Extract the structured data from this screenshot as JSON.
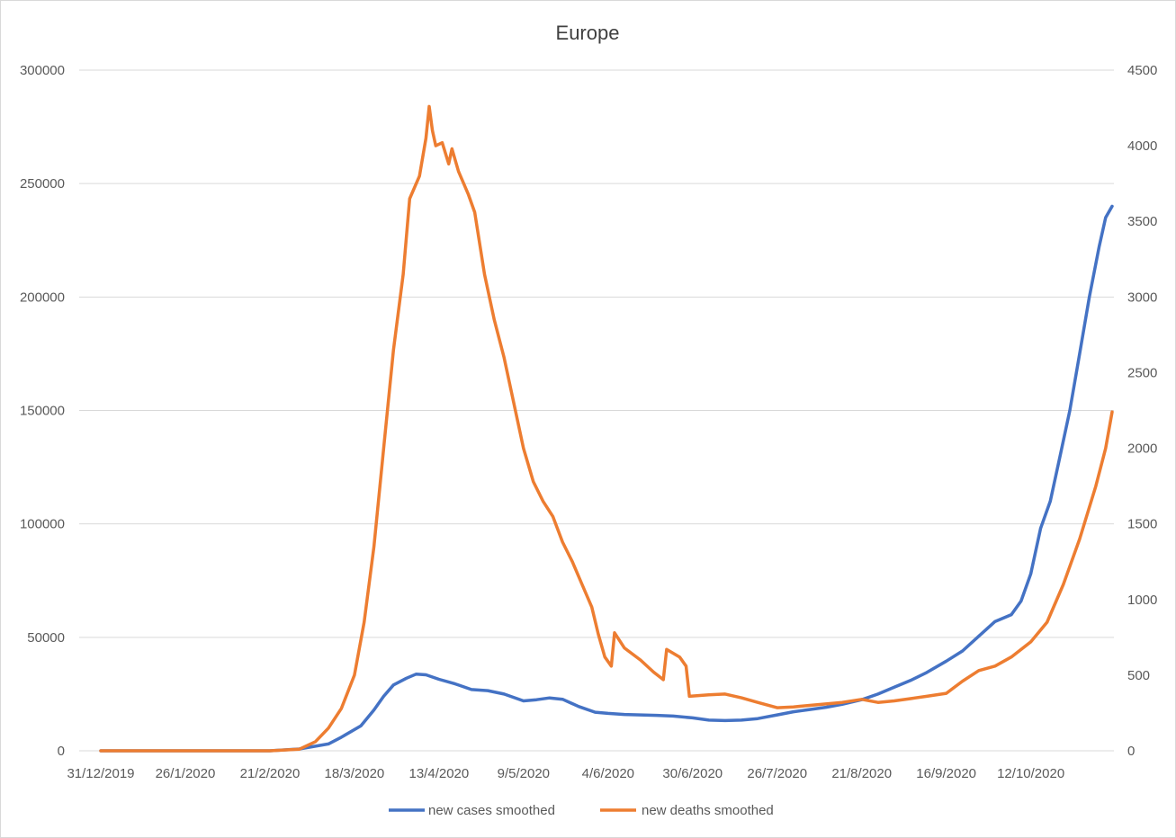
{
  "chart_data": {
    "type": "line",
    "title": "Europe",
    "grid": true,
    "legend_position": "bottom",
    "x_tick_labels": [
      "31/12/2019",
      "26/1/2020",
      "21/2/2020",
      "18/3/2020",
      "13/4/2020",
      "9/5/2020",
      "4/6/2020",
      "30/6/2020",
      "26/7/2020",
      "21/8/2020",
      "16/9/2020",
      "12/10/2020"
    ],
    "x_range": [
      "31/12/2019",
      "6/11/2020"
    ],
    "y_left": {
      "min": 0,
      "max": 300000,
      "ticks": [
        "0",
        "50000",
        "100000",
        "150000",
        "200000",
        "250000",
        "300000"
      ]
    },
    "y_right": {
      "min": 0,
      "max": 4500,
      "ticks": [
        "0",
        "500",
        "1000",
        "1500",
        "2000",
        "2500",
        "3000",
        "3500",
        "4000",
        "4500"
      ]
    },
    "series": [
      {
        "name": "new cases smoothed",
        "axis": "left",
        "color": "#4472c4",
        "points": [
          [
            "31/12/2019",
            0
          ],
          [
            "26/1/2020",
            0
          ],
          [
            "21/2/2020",
            0
          ],
          [
            "1/3/2020",
            800
          ],
          [
            "10/3/2020",
            3000
          ],
          [
            "14/3/2020",
            6000
          ],
          [
            "20/3/2020",
            11000
          ],
          [
            "24/3/2020",
            18000
          ],
          [
            "27/3/2020",
            24000
          ],
          [
            "30/3/2020",
            29000
          ],
          [
            "3/4/2020",
            32000
          ],
          [
            "6/4/2020",
            33800
          ],
          [
            "9/4/2020",
            33500
          ],
          [
            "13/4/2020",
            31500
          ],
          [
            "18/4/2020",
            29500
          ],
          [
            "23/4/2020",
            27000
          ],
          [
            "28/4/2020",
            26500
          ],
          [
            "3/5/2020",
            25000
          ],
          [
            "9/5/2020",
            22000
          ],
          [
            "13/5/2020",
            22500
          ],
          [
            "17/5/2020",
            23300
          ],
          [
            "21/5/2020",
            22700
          ],
          [
            "26/5/2020",
            19500
          ],
          [
            "31/5/2020",
            17000
          ],
          [
            "4/6/2020",
            16500
          ],
          [
            "9/6/2020",
            16000
          ],
          [
            "14/6/2020",
            15800
          ],
          [
            "19/6/2020",
            15600
          ],
          [
            "24/6/2020",
            15300
          ],
          [
            "30/6/2020",
            14500
          ],
          [
            "5/7/2020",
            13500
          ],
          [
            "10/7/2020",
            13300
          ],
          [
            "15/7/2020",
            13500
          ],
          [
            "20/7/2020",
            14200
          ],
          [
            "26/7/2020",
            15800
          ],
          [
            "31/7/2020",
            17200
          ],
          [
            "5/8/2020",
            18200
          ],
          [
            "10/8/2020",
            19200
          ],
          [
            "15/8/2020",
            20500
          ],
          [
            "21/8/2020",
            22500
          ],
          [
            "26/8/2020",
            25000
          ],
          [
            "31/8/2020",
            28000
          ],
          [
            "5/9/2020",
            31000
          ],
          [
            "10/9/2020",
            34500
          ],
          [
            "16/9/2020",
            39500
          ],
          [
            "21/9/2020",
            44000
          ],
          [
            "26/9/2020",
            50500
          ],
          [
            "1/10/2020",
            57000
          ],
          [
            "6/10/2020",
            60000
          ],
          [
            "9/10/2020",
            66000
          ],
          [
            "12/10/2020",
            78000
          ],
          [
            "15/10/2020",
            98000
          ],
          [
            "18/10/2020",
            110000
          ],
          [
            "21/10/2020",
            130000
          ],
          [
            "24/10/2020",
            150000
          ],
          [
            "27/10/2020",
            175000
          ],
          [
            "30/10/2020",
            200000
          ],
          [
            "2/11/2020",
            222000
          ],
          [
            "4/11/2020",
            235000
          ],
          [
            "6/11/2020",
            240000
          ]
        ]
      },
      {
        "name": "new deaths smoothed",
        "axis": "right",
        "color": "#ed7d31",
        "points": [
          [
            "31/12/2019",
            0
          ],
          [
            "26/1/2020",
            0
          ],
          [
            "21/2/2020",
            0
          ],
          [
            "1/3/2020",
            10
          ],
          [
            "6/3/2020",
            60
          ],
          [
            "10/3/2020",
            150
          ],
          [
            "14/3/2020",
            280
          ],
          [
            "18/3/2020",
            500
          ],
          [
            "21/3/2020",
            850
          ],
          [
            "24/3/2020",
            1350
          ],
          [
            "27/3/2020",
            2000
          ],
          [
            "30/3/2020",
            2650
          ],
          [
            "2/4/2020",
            3150
          ],
          [
            "4/4/2020",
            3650
          ],
          [
            "7/4/2020",
            3800
          ],
          [
            "9/4/2020",
            4050
          ],
          [
            "10/4/2020",
            4260
          ],
          [
            "11/4/2020",
            4100
          ],
          [
            "12/4/2020",
            4000
          ],
          [
            "14/4/2020",
            4020
          ],
          [
            "16/4/2020",
            3880
          ],
          [
            "17/4/2020",
            3980
          ],
          [
            "19/4/2020",
            3830
          ],
          [
            "22/4/2020",
            3680
          ],
          [
            "24/4/2020",
            3560
          ],
          [
            "27/4/2020",
            3150
          ],
          [
            "30/4/2020",
            2850
          ],
          [
            "3/5/2020",
            2600
          ],
          [
            "6/5/2020",
            2300
          ],
          [
            "9/5/2020",
            2000
          ],
          [
            "12/5/2020",
            1780
          ],
          [
            "15/5/2020",
            1650
          ],
          [
            "18/5/2020",
            1550
          ],
          [
            "21/5/2020",
            1380
          ],
          [
            "24/5/2020",
            1250
          ],
          [
            "27/5/2020",
            1100
          ],
          [
            "30/5/2020",
            950
          ],
          [
            "1/6/2020",
            770
          ],
          [
            "3/6/2020",
            620
          ],
          [
            "5/6/2020",
            560
          ],
          [
            "6/6/2020",
            780
          ],
          [
            "9/6/2020",
            680
          ],
          [
            "14/6/2020",
            600
          ],
          [
            "18/6/2020",
            520
          ],
          [
            "21/6/2020",
            470
          ],
          [
            "22/6/2020",
            670
          ],
          [
            "26/6/2020",
            620
          ],
          [
            "28/6/2020",
            560
          ],
          [
            "29/6/2020",
            360
          ],
          [
            "5/7/2020",
            370
          ],
          [
            "10/7/2020",
            375
          ],
          [
            "15/7/2020",
            350
          ],
          [
            "20/7/2020",
            320
          ],
          [
            "26/7/2020",
            285
          ],
          [
            "31/7/2020",
            290
          ],
          [
            "5/8/2020",
            300
          ],
          [
            "10/8/2020",
            310
          ],
          [
            "15/8/2020",
            320
          ],
          [
            "21/8/2020",
            340
          ],
          [
            "26/8/2020",
            320
          ],
          [
            "31/8/2020",
            330
          ],
          [
            "5/9/2020",
            345
          ],
          [
            "10/9/2020",
            360
          ],
          [
            "16/9/2020",
            380
          ],
          [
            "21/9/2020",
            460
          ],
          [
            "26/9/2020",
            530
          ],
          [
            "1/10/2020",
            560
          ],
          [
            "6/10/2020",
            620
          ],
          [
            "12/10/2020",
            720
          ],
          [
            "17/10/2020",
            850
          ],
          [
            "22/10/2020",
            1100
          ],
          [
            "27/10/2020",
            1400
          ],
          [
            "1/11/2020",
            1750
          ],
          [
            "4/11/2020",
            2000
          ],
          [
            "6/11/2020",
            2240
          ]
        ]
      }
    ]
  }
}
